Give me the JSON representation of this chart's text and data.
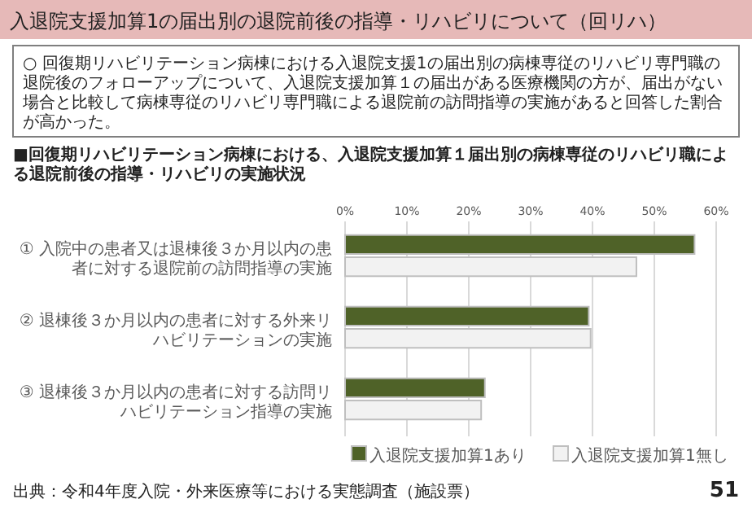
{
  "chart_data": {
    "type": "bar",
    "orientation": "horizontal",
    "title": "入退院支援加算1の届出別の退院前後の指導・リハビリについて（回リハ）",
    "subtitle": "○ 回復期リハビリテーション病棟における入退院支援1の届出別の病棟専従のリハビリ専門職の退院後のフォローアップについて、入退院支援加算１の届出がある医療機関の方が、届出がない場合と比較して病棟専従のリハビリ専門職による退院前の訪問指導の実施があると回答した割合が高かった。",
    "annotations": [
      "■回復期リハビリテーション病棟における、入退院支援加算１届出別の病棟専従のリハビリ職による退院前後の指導・リハビリの実施状況",
      "出典：令和4年度入院・外来医療等における実態調査（施設票）",
      "51"
    ],
    "categories": [
      "① 入院中の患者又は退棟後３か月以内の患者に対する退院前の訪問指導の実施",
      "② 退棟後３か月以内の患者に対する外来リハビリテーションの実施",
      "③ 退棟後３か月以内の患者に対する訪問リハビリテーション指導の実施"
    ],
    "series": [
      {
        "name": "入退院支援加算1あり",
        "color": "#4f6228",
        "values": [
          56.5,
          39.4,
          22.6
        ]
      },
      {
        "name": "入退院支援加算1無し",
        "color": "#f2f2f2",
        "values": [
          47.1,
          39.7,
          22.0
        ]
      }
    ],
    "xlim": [
      0,
      60
    ],
    "xticks": [
      {
        "value": 0,
        "label": "0%"
      },
      {
        "value": 10,
        "label": "10%"
      },
      {
        "value": 20,
        "label": "20%"
      },
      {
        "value": 30,
        "label": "30%"
      },
      {
        "value": 40,
        "label": "40%"
      },
      {
        "value": 50,
        "label": "50%"
      },
      {
        "value": 60,
        "label": "60%"
      }
    ],
    "grid": "x",
    "legend": "bottom"
  }
}
